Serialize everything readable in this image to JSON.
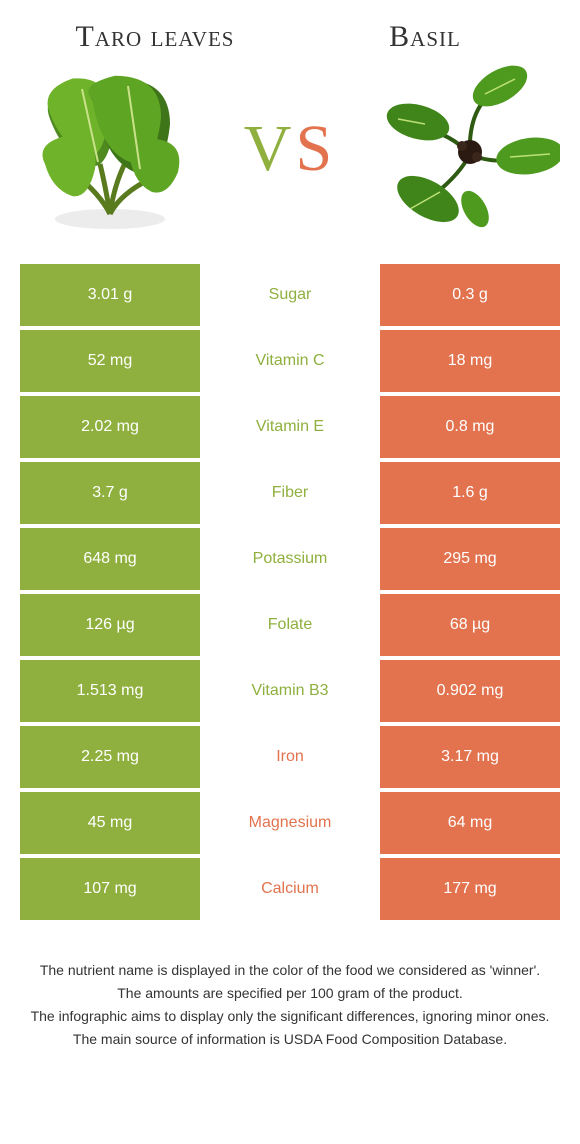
{
  "foods": {
    "left": {
      "name": "Taro leaves",
      "color": "#8fb03e"
    },
    "right": {
      "name": "Basil",
      "color": "#e2734e"
    }
  },
  "vs_label": {
    "v": "V",
    "s": "S"
  },
  "rows": [
    {
      "nutrient": "Sugar",
      "left": "3.01 g",
      "right": "0.3 g",
      "winner": "left"
    },
    {
      "nutrient": "Vitamin C",
      "left": "52 mg",
      "right": "18 mg",
      "winner": "left"
    },
    {
      "nutrient": "Vitamin E",
      "left": "2.02 mg",
      "right": "0.8 mg",
      "winner": "left"
    },
    {
      "nutrient": "Fiber",
      "left": "3.7 g",
      "right": "1.6 g",
      "winner": "left"
    },
    {
      "nutrient": "Potassium",
      "left": "648 mg",
      "right": "295 mg",
      "winner": "left"
    },
    {
      "nutrient": "Folate",
      "left": "126 µg",
      "right": "68 µg",
      "winner": "left"
    },
    {
      "nutrient": "Vitamin B3",
      "left": "1.513 mg",
      "right": "0.902 mg",
      "winner": "left"
    },
    {
      "nutrient": "Iron",
      "left": "2.25 mg",
      "right": "3.17 mg",
      "winner": "right"
    },
    {
      "nutrient": "Magnesium",
      "left": "45 mg",
      "right": "64 mg",
      "winner": "right"
    },
    {
      "nutrient": "Calcium",
      "left": "107 mg",
      "right": "177 mg",
      "winner": "right"
    }
  ],
  "footer_lines": [
    "The nutrient name is displayed in the color of the food we considered as 'winner'.",
    "The amounts are specified per 100 gram of the product.",
    "The infographic aims to display only the significant differences, ignoring minor ones.",
    "The main source of information is USDA Food Composition Database."
  ]
}
